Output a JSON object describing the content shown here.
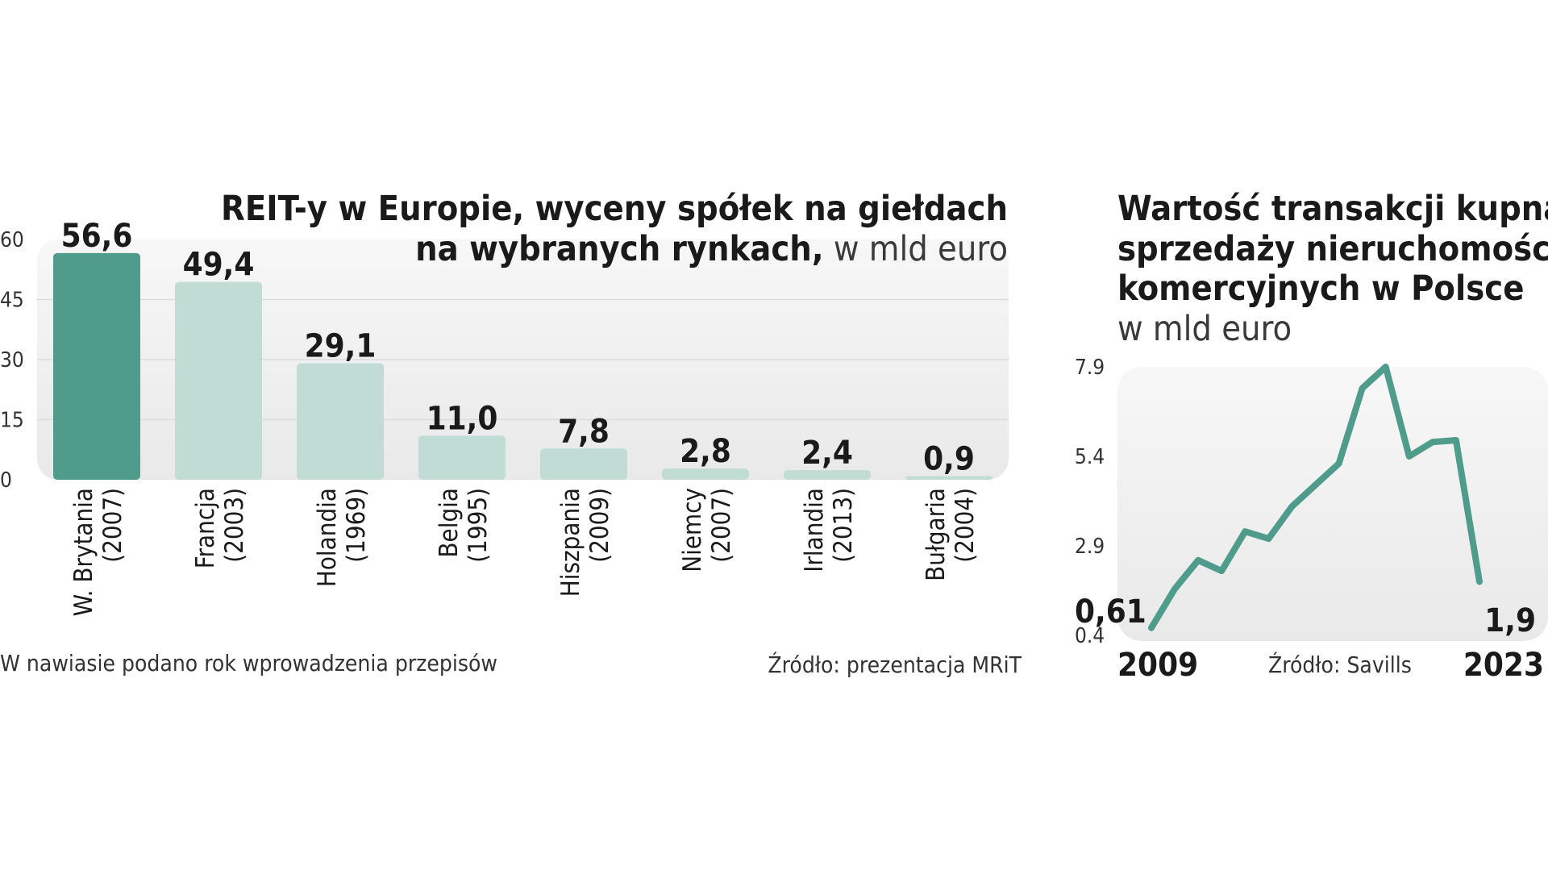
{
  "chart_data": [
    {
      "type": "bar",
      "title": "REIT-y w Europie, wyceny spółek na giełdach",
      "title_line2": "na wybranych rynkach,",
      "unit": "w mld euro",
      "categories": [
        "W. Brytania",
        "Francja",
        "Holandia",
        "Belgia",
        "Hiszpania",
        "Niemcy",
        "Irlandia",
        "Bułgaria"
      ],
      "years": [
        "(2007)",
        "(2003)",
        "(1969)",
        "(1995)",
        "(2009)",
        "(2007)",
        "(2013)",
        "(2004)"
      ],
      "values": [
        56.6,
        49.4,
        29.1,
        11.0,
        7.8,
        2.8,
        2.4,
        0.9
      ],
      "value_labels": [
        "56,6",
        "49,4",
        "29,1",
        "11,0",
        "7,8",
        "2,8",
        "2,4",
        "0,9"
      ],
      "yticks": [
        "0",
        "15",
        "30",
        "45",
        "60"
      ],
      "ylim": [
        0,
        60
      ],
      "grid": true,
      "footnote": "W nawiasie podano rok wprowadzenia przepisów",
      "source": "Źródło: prezentacja MRiT",
      "colors": {
        "highlight": "#4f9b8c",
        "bar": "#c0dcd4",
        "background": "#efefef",
        "grid": "#dcdcdc"
      }
    },
    {
      "type": "line",
      "title_lines": [
        "Wartość transakcji kupna",
        "sprzedaży nieruchomości",
        "komercyjnych w Polsce"
      ],
      "unit": "w mld euro",
      "x": [
        2009,
        2010,
        2011,
        2012,
        2013,
        2014,
        2015,
        2016,
        2017,
        2018,
        2019,
        2020,
        2021,
        2022,
        2023
      ],
      "values": [
        0.61,
        1.7,
        2.5,
        2.2,
        3.3,
        3.1,
        4.0,
        4.6,
        5.2,
        7.3,
        7.9,
        5.4,
        5.8,
        5.85,
        1.9
      ],
      "yticks": [
        "0.4",
        "2.9",
        "5.4",
        "7.9"
      ],
      "ylim": [
        0.4,
        7.9
      ],
      "start_label": "0,61",
      "end_label": "1,9",
      "x_start_label": "2009",
      "x_end_label": "2023",
      "source": "Źródło: Savills",
      "colors": {
        "line": "#4f9b8c",
        "background": "#efefef"
      }
    }
  ]
}
